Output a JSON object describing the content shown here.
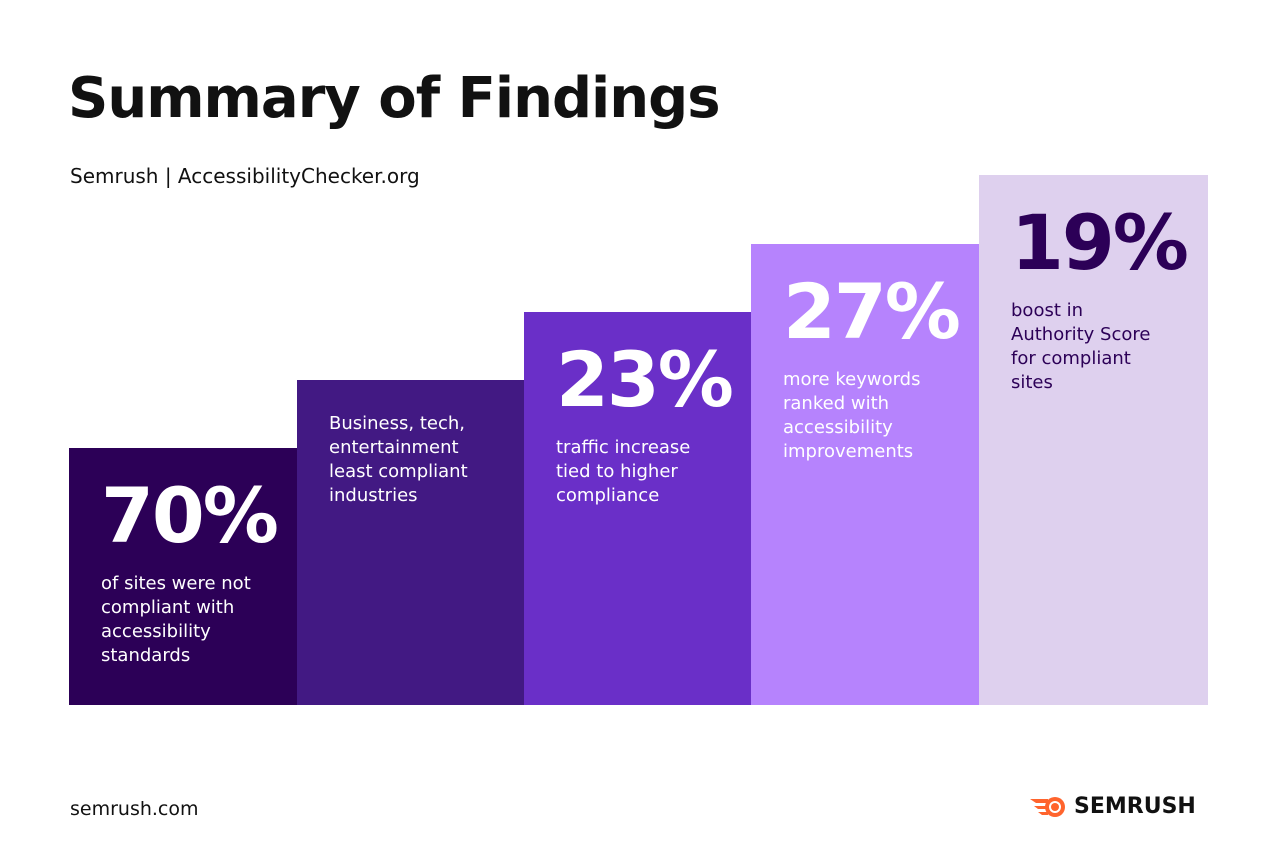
{
  "title": "Summary of Findings",
  "subtitle": "Semrush | AccessibilityChecker.org",
  "steps": [
    {
      "value": "70%",
      "text": "of sites were not compliant with accessibility standards",
      "color": "#2c0057",
      "text_color": "#ffffff"
    },
    {
      "value": "",
      "text": "Business, tech, entertainment least compliant industries",
      "color": "#421983",
      "text_color": "#ffffff"
    },
    {
      "value": "23%",
      "text": "traffic increase tied to higher compliance",
      "color": "#6a2fc8",
      "text_color": "#ffffff"
    },
    {
      "value": "27%",
      "text": "more keywords ranked with accessibility improvements",
      "color": "#b683fd",
      "text_color": "#ffffff"
    },
    {
      "value": "19%",
      "text": "boost in Authority Score for compliant sites",
      "color": "#ded0ee",
      "text_color": "#2c0057"
    }
  ],
  "footer": {
    "url": "semrush.com",
    "logo_text": "SEMRUSH",
    "logo_color": "#ff642d"
  }
}
